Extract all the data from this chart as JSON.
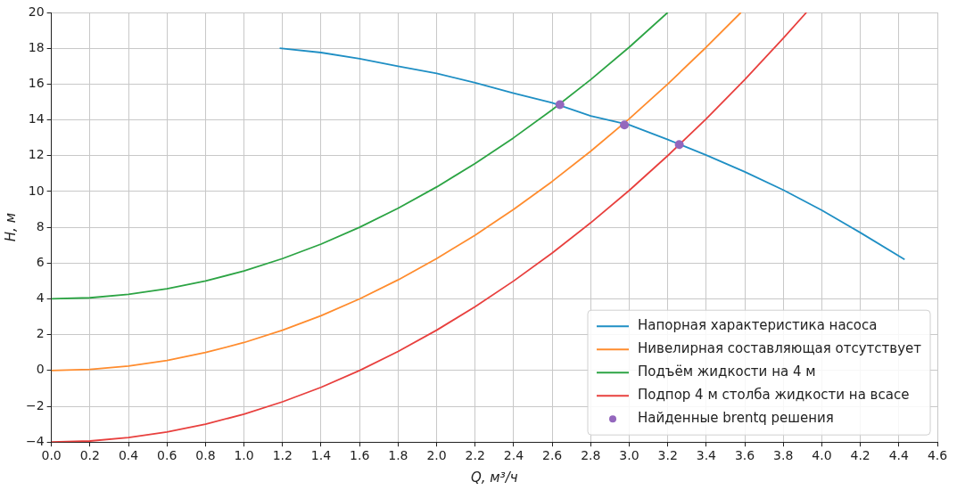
{
  "chart_data": {
    "type": "line",
    "xlabel": "Q, м³/ч",
    "ylabel": "H, м",
    "xlim": [
      0,
      4.6
    ],
    "ylim": [
      -4,
      20
    ],
    "xticks": [
      {
        "value": 0,
        "label": "0.0"
      },
      0.2,
      0.4,
      0.6,
      0.8,
      {
        "value": 1,
        "label": "1.0"
      },
      1.2,
      1.4,
      1.6,
      1.8,
      {
        "value": 2,
        "label": "2.0"
      },
      2.2,
      2.4,
      2.6,
      2.8,
      {
        "value": 3,
        "label": "3.0"
      },
      3.2,
      3.4,
      3.6,
      3.8,
      {
        "value": 4,
        "label": "4.0"
      },
      4.2,
      4.4,
      4.6
    ],
    "yticks": [
      -4,
      -2,
      0,
      2,
      4,
      6,
      8,
      10,
      12,
      14,
      16,
      18,
      20
    ],
    "grid": true,
    "legend": "bottom right",
    "series": [
      {
        "name": "Напорная характеристика насоса",
        "color": "#1f8fc4",
        "type": "line",
        "x": [
          1.185,
          1.4,
          1.6,
          1.8,
          2.0,
          2.2,
          2.4,
          2.6,
          2.8,
          3.0,
          3.2,
          3.4,
          3.6,
          3.8,
          4.0,
          4.2,
          4.43
        ],
        "values": [
          18.0,
          17.76,
          17.42,
          17.0,
          16.6,
          16.07,
          15.49,
          14.95,
          14.22,
          13.72,
          12.9,
          12.03,
          11.1,
          10.08,
          8.95,
          7.7,
          6.2
        ]
      },
      {
        "name": "Нивелирная составляющая отсутствует",
        "color": "#ff8c2e",
        "type": "line",
        "x": [
          0,
          0.2,
          0.4,
          0.6,
          0.8,
          1.0,
          1.2,
          1.4,
          1.6,
          1.8,
          2.0,
          2.2,
          2.4,
          2.6,
          2.8,
          3.0,
          3.2,
          3.4,
          3.58
        ],
        "values": [
          0,
          0.06,
          0.25,
          0.56,
          1.0,
          1.56,
          2.25,
          3.06,
          4.0,
          5.06,
          6.25,
          7.56,
          9.0,
          10.56,
          12.25,
          14.06,
          16.0,
          18.06,
          20.0
        ]
      },
      {
        "name": "Подъём жидкости на 4 м",
        "color": "#2ca444",
        "type": "line",
        "x": [
          0,
          0.2,
          0.4,
          0.6,
          0.8,
          1.0,
          1.2,
          1.4,
          1.6,
          1.8,
          2.0,
          2.2,
          2.4,
          2.6,
          2.8,
          3.0,
          3.2
        ],
        "values": [
          4,
          4.06,
          4.25,
          4.56,
          5.0,
          5.56,
          6.25,
          7.06,
          8.0,
          9.06,
          10.25,
          11.56,
          13.0,
          14.56,
          16.25,
          18.06,
          20.0
        ]
      },
      {
        "name": "Подпор 4 м столба жидкости на всасе",
        "color": "#e8403e",
        "type": "line",
        "x": [
          0,
          0.2,
          0.4,
          0.6,
          0.8,
          1.0,
          1.2,
          1.4,
          1.6,
          1.8,
          2.0,
          2.2,
          2.4,
          2.6,
          2.8,
          3.0,
          3.2,
          3.4,
          3.6,
          3.8,
          3.92
        ],
        "values": [
          -4,
          -3.94,
          -3.75,
          -3.44,
          -3.0,
          -2.44,
          -1.75,
          -0.94,
          0,
          1.06,
          2.25,
          3.56,
          5.0,
          6.56,
          8.25,
          10.06,
          12.0,
          14.06,
          16.25,
          18.56,
          20.0
        ]
      },
      {
        "name": "Найденные brentq решения",
        "color": "#9467bd",
        "type": "scatter",
        "marker": "circle",
        "x": [
          2.64,
          2.975,
          3.26
        ],
        "values": [
          14.85,
          13.72,
          12.62
        ]
      }
    ]
  }
}
